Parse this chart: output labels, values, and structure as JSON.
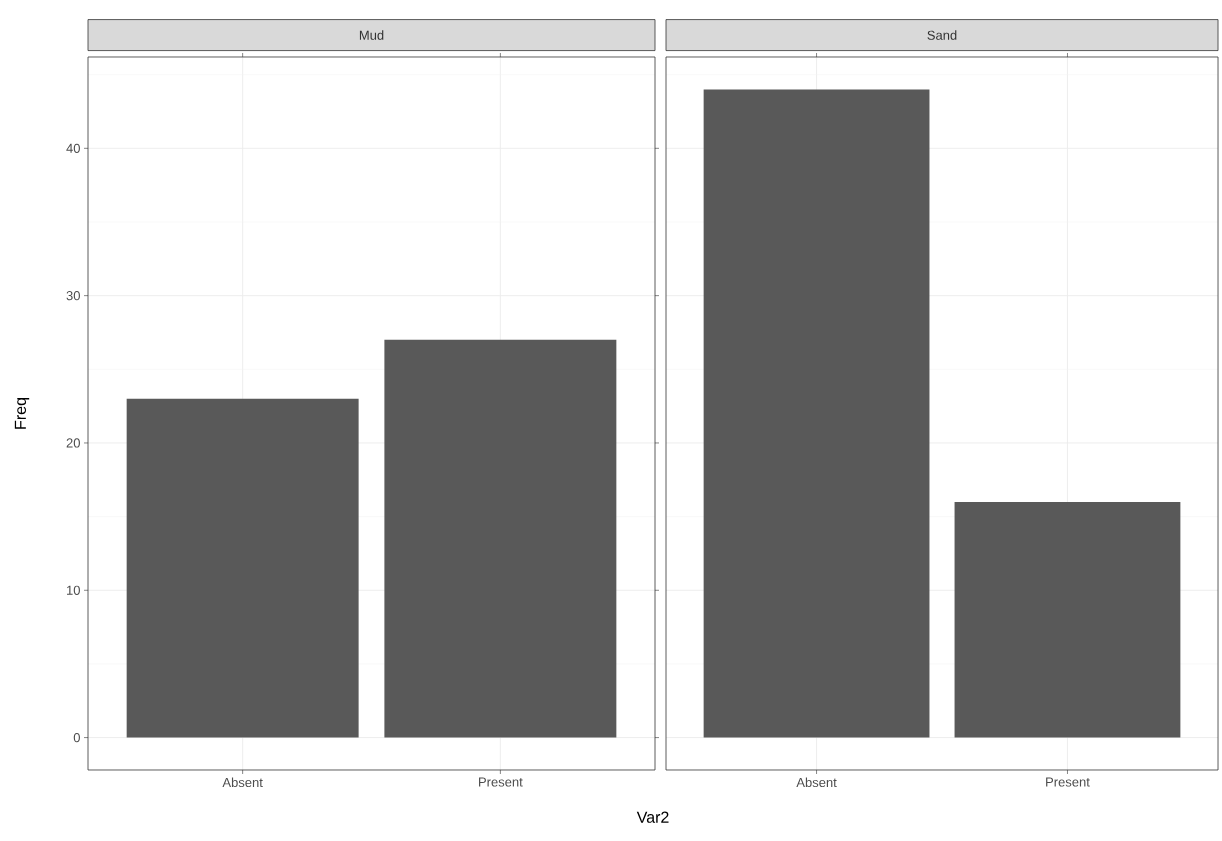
{
  "chart_data": [
    {
      "type": "bar",
      "title": "Mud",
      "categories": [
        "Absent",
        "Present"
      ],
      "values": [
        23,
        27
      ],
      "color": "#595959",
      "ylim": [
        -2.2,
        46.2
      ],
      "yticks": [
        0,
        10,
        20,
        30,
        40
      ],
      "ylabel": "Freq",
      "xlabel": "Var2",
      "grid": true
    },
    {
      "type": "bar",
      "title": "Sand",
      "categories": [
        "Absent",
        "Present"
      ],
      "values": [
        44,
        16
      ],
      "color": "#595959",
      "ylim": [
        -2.2,
        46.2
      ],
      "yticks": [
        0,
        10,
        20,
        30,
        40
      ],
      "grid": true,
      "tick_labels": "x"
    }
  ]
}
